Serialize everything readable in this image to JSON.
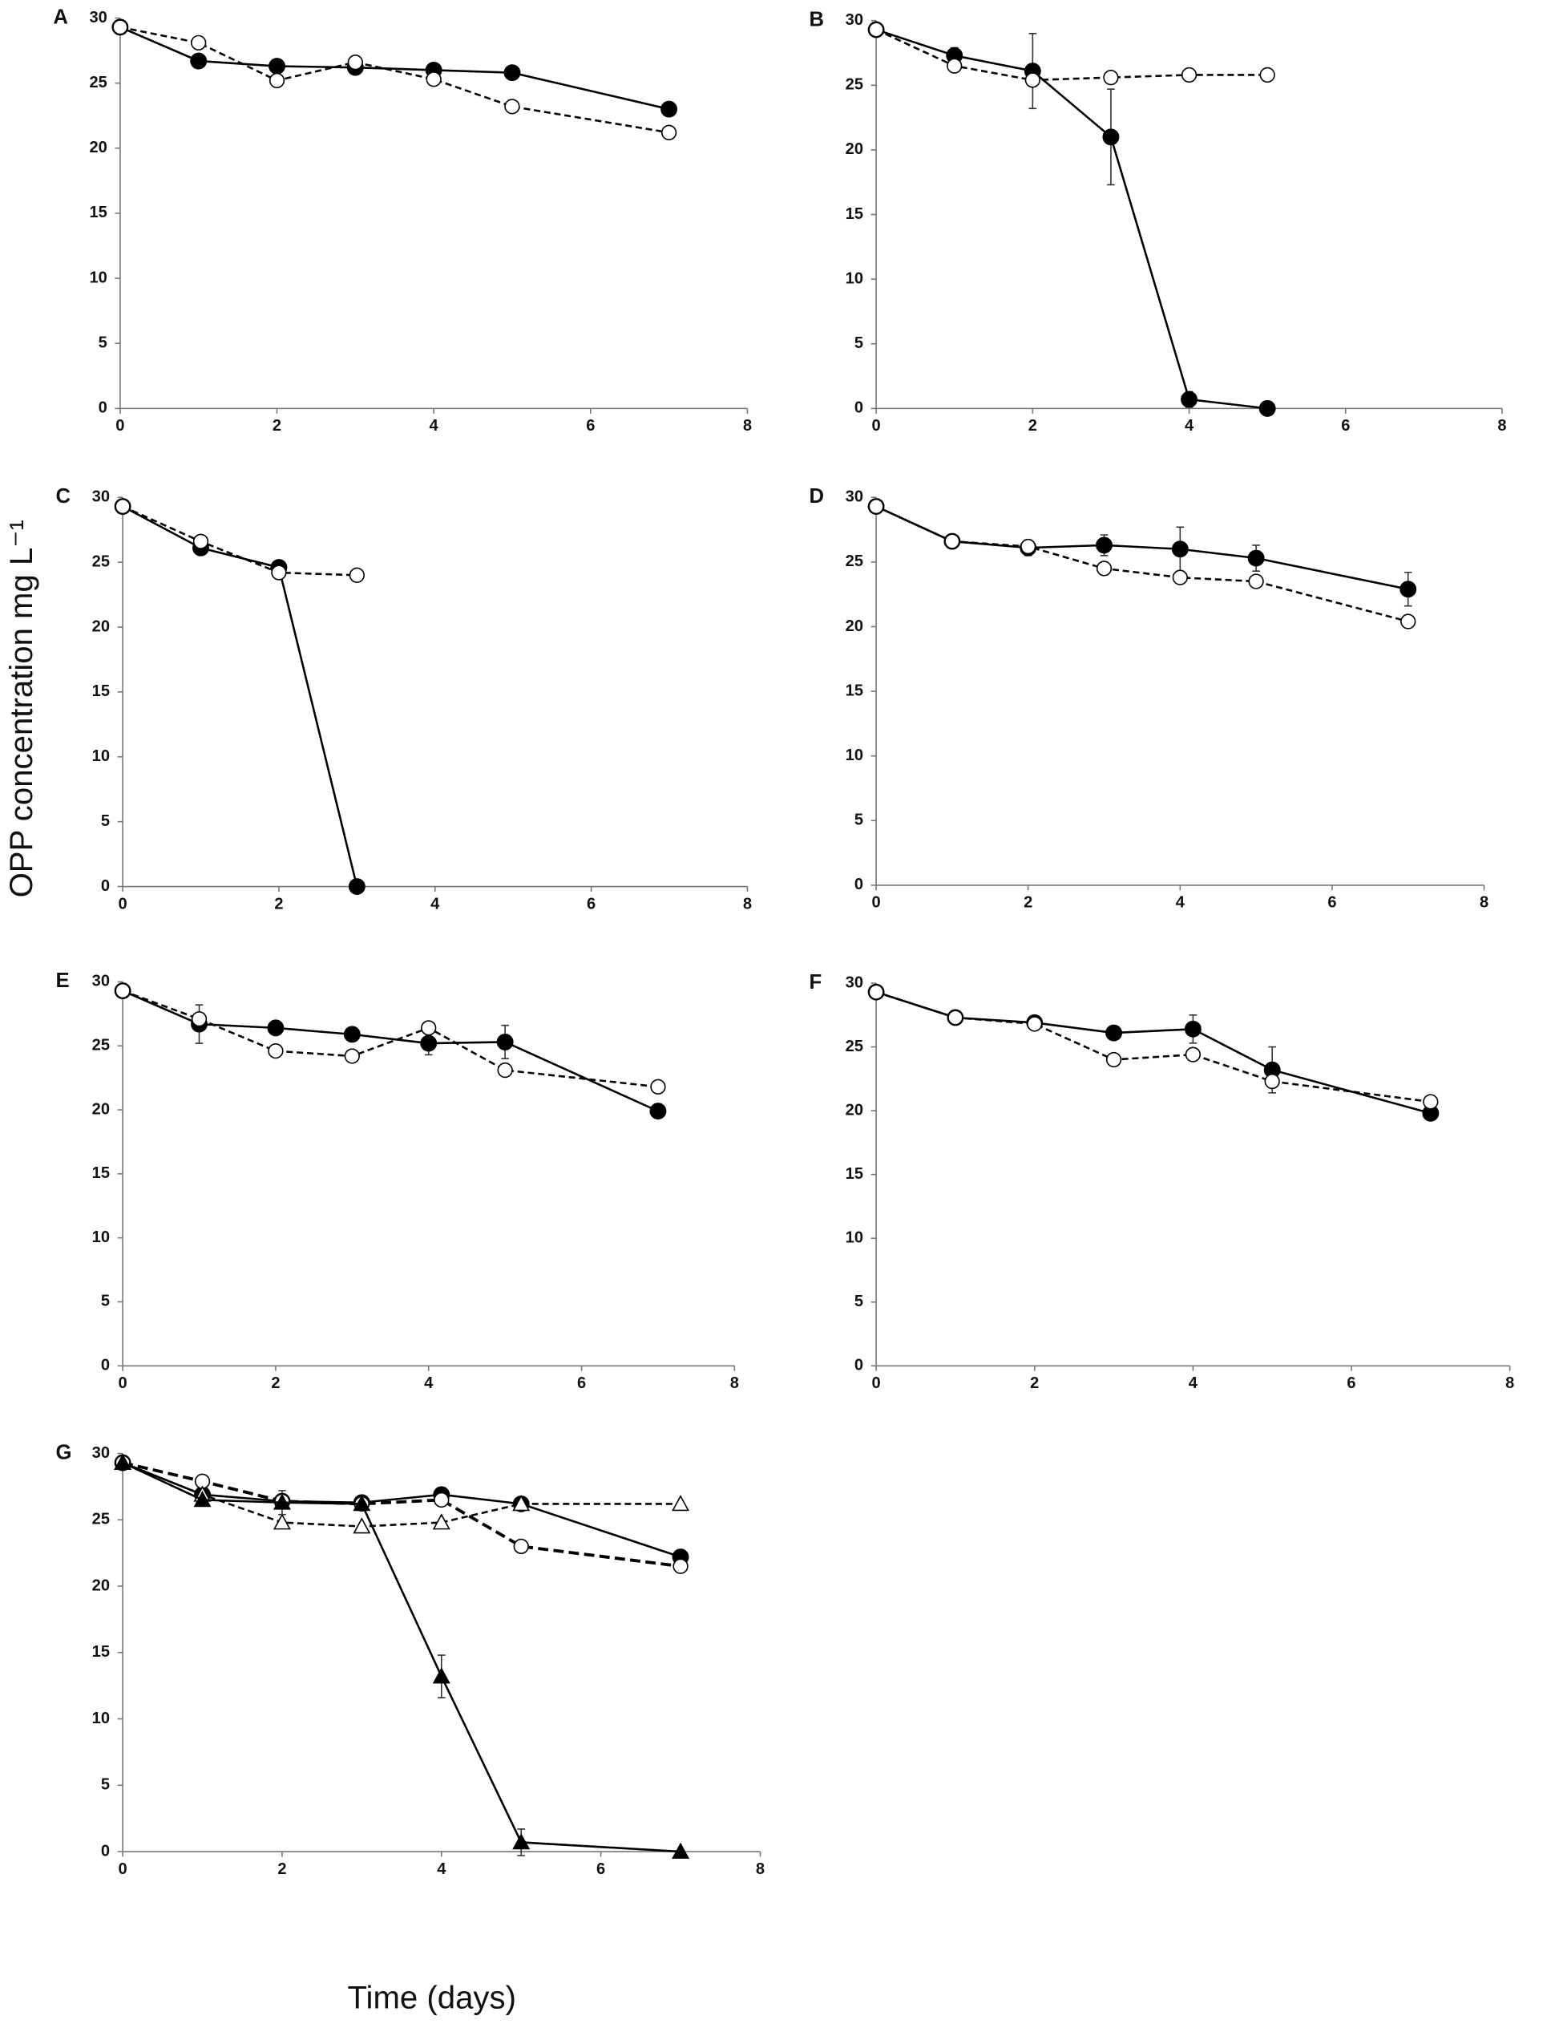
{
  "y_label": "OPP concentration mg L⁻¹",
  "x_label": "Time (days)",
  "chart_data": [
    {
      "type": "line",
      "panel": "A",
      "x": [
        0,
        1,
        2,
        3,
        4,
        5,
        7
      ],
      "xlim": [
        0,
        8
      ],
      "xticks": [
        0,
        2,
        4,
        6,
        8
      ],
      "ylim": [
        0,
        30
      ],
      "yticks": [
        0,
        5,
        10,
        15,
        20,
        25,
        30
      ],
      "series": [
        {
          "color": "#000000",
          "marker": "circle",
          "filled": true,
          "dash": "solid",
          "values": [
            29.3,
            26.7,
            26.3,
            26.2,
            26.0,
            25.8,
            23.0
          ]
        },
        {
          "color": "#000000",
          "marker": "circle",
          "filled": false,
          "dash": "dashed",
          "values": [
            29.3,
            28.1,
            25.2,
            26.6,
            25.3,
            23.2,
            21.2
          ]
        }
      ]
    },
    {
      "type": "line",
      "panel": "B",
      "x": [
        0,
        1,
        2,
        3,
        4,
        5
      ],
      "xlim": [
        0,
        8
      ],
      "xticks": [
        0,
        2,
        4,
        6,
        8
      ],
      "ylim": [
        0,
        30
      ],
      "yticks": [
        0,
        5,
        10,
        15,
        20,
        25,
        30
      ],
      "series": [
        {
          "color": "#000000",
          "marker": "circle",
          "filled": true,
          "dash": "solid",
          "values": [
            29.3,
            27.3,
            26.1,
            21.0,
            0.7,
            0
          ],
          "errors": [
            null,
            0.6,
            2.9,
            3.7,
            0.6,
            null
          ]
        },
        {
          "color": "#000000",
          "marker": "circle",
          "filled": false,
          "dash": "dashed",
          "values": [
            29.3,
            26.5,
            25.4,
            25.6,
            25.8,
            25.8
          ]
        }
      ]
    },
    {
      "type": "line",
      "panel": "C",
      "x": [
        0,
        1,
        2,
        3
      ],
      "xlim": [
        0,
        8
      ],
      "xticks": [
        0,
        2,
        4,
        6,
        8
      ],
      "ylim": [
        0,
        30
      ],
      "yticks": [
        0,
        5,
        10,
        15,
        20,
        25,
        30
      ],
      "series": [
        {
          "color": "#000000",
          "marker": "circle",
          "filled": true,
          "dash": "solid",
          "values": [
            29.3,
            26.1,
            24.6,
            0
          ]
        },
        {
          "color": "#000000",
          "marker": "circle",
          "filled": false,
          "dash": "dashed",
          "values": [
            29.3,
            26.6,
            24.2,
            24.0
          ]
        }
      ]
    },
    {
      "type": "line",
      "panel": "D",
      "x": [
        0,
        1,
        2,
        3,
        4,
        5,
        7
      ],
      "xlim": [
        0,
        8
      ],
      "xticks": [
        0,
        2,
        4,
        6,
        8
      ],
      "ylim": [
        0,
        30
      ],
      "yticks": [
        0,
        5,
        10,
        15,
        20,
        25,
        30
      ],
      "series": [
        {
          "color": "#000000",
          "marker": "circle",
          "filled": true,
          "dash": "solid",
          "values": [
            29.3,
            26.6,
            26.1,
            26.3,
            26.0,
            25.3,
            22.9
          ],
          "errors": [
            null,
            null,
            0.6,
            0.8,
            1.7,
            1.0,
            1.3
          ]
        },
        {
          "color": "#000000",
          "marker": "circle",
          "filled": false,
          "dash": "dashed",
          "values": [
            29.3,
            26.6,
            26.2,
            24.5,
            23.8,
            23.5,
            20.4
          ]
        }
      ]
    },
    {
      "type": "line",
      "panel": "E",
      "x": [
        0,
        1,
        2,
        3,
        4,
        5,
        7
      ],
      "xlim": [
        0,
        8
      ],
      "xticks": [
        0,
        2,
        4,
        6,
        8
      ],
      "ylim": [
        0,
        30
      ],
      "yticks": [
        0,
        5,
        10,
        15,
        20,
        25,
        30
      ],
      "series": [
        {
          "color": "#000000",
          "marker": "circle",
          "filled": true,
          "dash": "solid",
          "values": [
            29.3,
            26.7,
            26.4,
            25.9,
            25.2,
            25.3,
            19.9
          ],
          "errors": [
            null,
            1.5,
            null,
            null,
            0.9,
            1.3,
            null
          ]
        },
        {
          "color": "#000000",
          "marker": "circle",
          "filled": false,
          "dash": "dashed",
          "values": [
            29.3,
            27.1,
            24.6,
            24.2,
            26.4,
            23.1,
            21.8
          ]
        }
      ]
    },
    {
      "type": "line",
      "panel": "F",
      "x": [
        0,
        1,
        2,
        3,
        4,
        5,
        7
      ],
      "xlim": [
        0,
        8
      ],
      "xticks": [
        0,
        2,
        4,
        6,
        8
      ],
      "ylim": [
        0,
        30
      ],
      "yticks": [
        0,
        5,
        10,
        15,
        20,
        25,
        30
      ],
      "series": [
        {
          "color": "#000000",
          "marker": "circle",
          "filled": true,
          "dash": "solid",
          "values": [
            29.3,
            27.3,
            26.9,
            26.1,
            26.4,
            23.2,
            19.8
          ],
          "errors": [
            null,
            null,
            0.5,
            0.5,
            1.1,
            1.8,
            null
          ]
        },
        {
          "color": "#000000",
          "marker": "circle",
          "filled": false,
          "dash": "dashed",
          "values": [
            29.3,
            27.3,
            26.8,
            24.0,
            24.4,
            22.3,
            20.7
          ]
        }
      ]
    },
    {
      "type": "line",
      "panel": "G",
      "x": [
        0,
        1,
        2,
        3,
        4,
        5,
        7
      ],
      "xlim": [
        0,
        8
      ],
      "xticks": [
        0,
        2,
        4,
        6,
        8
      ],
      "ylim": [
        0,
        30
      ],
      "yticks": [
        0,
        5,
        10,
        15,
        20,
        25,
        30
      ],
      "series": [
        {
          "color": "#000000",
          "marker": "circle",
          "filled": true,
          "dash": "solid",
          "values": [
            29.3,
            26.9,
            26.4,
            26.3,
            26.9,
            26.2,
            22.2
          ]
        },
        {
          "color": "#000000",
          "marker": "circle",
          "filled": false,
          "dash": "long-dashed",
          "values": [
            29.3,
            27.9,
            26.4,
            26.2,
            26.5,
            23.0,
            21.5
          ]
        },
        {
          "color": "#000000",
          "marker": "triangle",
          "filled": false,
          "dash": "dashed",
          "values": [
            29.3,
            26.9,
            24.8,
            24.5,
            24.8,
            26.2,
            26.2
          ]
        },
        {
          "color": "#000000",
          "marker": "triangle",
          "filled": true,
          "dash": "solid",
          "values": [
            29.3,
            26.5,
            26.3,
            26.2,
            13.2,
            0.7,
            0
          ],
          "errors": [
            null,
            null,
            0.9,
            null,
            1.6,
            1.0,
            null
          ]
        }
      ]
    }
  ]
}
